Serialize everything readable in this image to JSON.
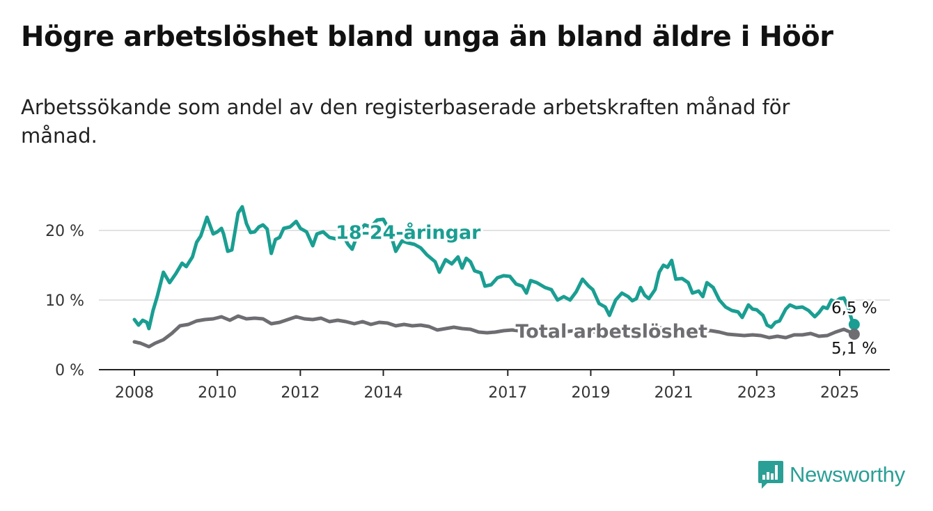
{
  "title": "Högre arbetslöshet bland unga än bland äldre i Höör",
  "subtitle": "Arbetssökande som andel av den registerbaserade arbetskraften månad för månad.",
  "brand": {
    "name": "Newsworthy",
    "icon": "chart-bars-icon",
    "color": "#2a9f95"
  },
  "chart_data": {
    "type": "line",
    "ylim": [
      0,
      25
    ],
    "xlim": [
      2007.6,
      2026.2
    ],
    "y_ticks": [
      {
        "value": 0,
        "label": "0 %"
      },
      {
        "value": 10,
        "label": "10 %"
      },
      {
        "value": 20,
        "label": "20 %"
      }
    ],
    "x_ticks": [
      {
        "value": 2008,
        "label": "2008"
      },
      {
        "value": 2010,
        "label": "2010"
      },
      {
        "value": 2012,
        "label": "2012"
      },
      {
        "value": 2014,
        "label": "2014"
      },
      {
        "value": 2017,
        "label": "2017"
      },
      {
        "value": 2019,
        "label": "2019"
      },
      {
        "value": 2021,
        "label": "2021"
      },
      {
        "value": 2023,
        "label": "2023"
      },
      {
        "value": 2025,
        "label": "2025"
      }
    ],
    "grid": true,
    "series": [
      {
        "name": "18-24-åringar",
        "color": "#1a9e92",
        "end_label": "6,5 %",
        "end_value": 6.5,
        "points": [
          [
            2008.0,
            7.2
          ],
          [
            2008.1,
            6.4
          ],
          [
            2008.2,
            7.1
          ],
          [
            2008.3,
            6.8
          ],
          [
            2008.35,
            5.9
          ],
          [
            2008.45,
            8.5
          ],
          [
            2008.55,
            10.5
          ],
          [
            2008.7,
            14.0
          ],
          [
            2008.85,
            12.5
          ],
          [
            2009.0,
            13.8
          ],
          [
            2009.15,
            15.3
          ],
          [
            2009.25,
            14.8
          ],
          [
            2009.4,
            16.2
          ],
          [
            2009.5,
            18.3
          ],
          [
            2009.6,
            19.2
          ],
          [
            2009.75,
            21.9
          ],
          [
            2009.9,
            19.5
          ],
          [
            2010.0,
            19.8
          ],
          [
            2010.1,
            20.3
          ],
          [
            2010.15,
            19.5
          ],
          [
            2010.25,
            17.0
          ],
          [
            2010.35,
            17.2
          ],
          [
            2010.5,
            22.5
          ],
          [
            2010.6,
            23.4
          ],
          [
            2010.7,
            21.0
          ],
          [
            2010.8,
            19.7
          ],
          [
            2010.9,
            19.8
          ],
          [
            2011.0,
            20.5
          ],
          [
            2011.1,
            20.8
          ],
          [
            2011.2,
            20.2
          ],
          [
            2011.3,
            16.7
          ],
          [
            2011.4,
            18.7
          ],
          [
            2011.5,
            19.0
          ],
          [
            2011.6,
            20.3
          ],
          [
            2011.75,
            20.5
          ],
          [
            2011.9,
            21.3
          ],
          [
            2012.0,
            20.3
          ],
          [
            2012.15,
            19.8
          ],
          [
            2012.3,
            17.8
          ],
          [
            2012.4,
            19.5
          ],
          [
            2012.55,
            19.8
          ],
          [
            2012.7,
            19.0
          ],
          [
            2012.85,
            18.8
          ],
          [
            2013.0,
            19.6
          ],
          [
            2013.15,
            18.0
          ],
          [
            2013.25,
            17.3
          ],
          [
            2013.4,
            19.8
          ],
          [
            2013.55,
            20.8
          ],
          [
            2013.7,
            20.5
          ],
          [
            2013.85,
            21.5
          ],
          [
            2014.0,
            21.6
          ],
          [
            2014.15,
            20.0
          ],
          [
            2014.3,
            17.0
          ],
          [
            2014.45,
            18.5
          ],
          [
            2014.6,
            18.2
          ],
          [
            2014.75,
            18.0
          ],
          [
            2014.9,
            17.5
          ],
          [
            2015.05,
            16.5
          ],
          [
            2015.25,
            15.5
          ],
          [
            2015.35,
            14.0
          ],
          [
            2015.5,
            15.8
          ],
          [
            2015.65,
            15.2
          ],
          [
            2015.8,
            16.2
          ],
          [
            2015.9,
            14.6
          ],
          [
            2016.0,
            16.0
          ],
          [
            2016.1,
            15.5
          ],
          [
            2016.2,
            14.2
          ],
          [
            2016.35,
            13.9
          ],
          [
            2016.45,
            12.0
          ],
          [
            2016.6,
            12.2
          ],
          [
            2016.75,
            13.2
          ],
          [
            2016.9,
            13.5
          ],
          [
            2017.05,
            13.4
          ],
          [
            2017.2,
            12.3
          ],
          [
            2017.35,
            12.0
          ],
          [
            2017.45,
            11.0
          ],
          [
            2017.55,
            12.8
          ],
          [
            2017.7,
            12.5
          ],
          [
            2017.9,
            11.8
          ],
          [
            2018.05,
            11.5
          ],
          [
            2018.2,
            10.0
          ],
          [
            2018.35,
            10.5
          ],
          [
            2018.5,
            10.0
          ],
          [
            2018.65,
            11.2
          ],
          [
            2018.8,
            13.0
          ],
          [
            2018.95,
            12.0
          ],
          [
            2019.05,
            11.5
          ],
          [
            2019.2,
            9.5
          ],
          [
            2019.35,
            9.0
          ],
          [
            2019.45,
            7.8
          ],
          [
            2019.6,
            10.0
          ],
          [
            2019.75,
            11.0
          ],
          [
            2019.9,
            10.5
          ],
          [
            2020.0,
            9.9
          ],
          [
            2020.1,
            10.2
          ],
          [
            2020.2,
            11.8
          ],
          [
            2020.3,
            10.7
          ],
          [
            2020.4,
            10.2
          ],
          [
            2020.55,
            11.5
          ],
          [
            2020.65,
            14.0
          ],
          [
            2020.75,
            15.0
          ],
          [
            2020.85,
            14.7
          ],
          [
            2020.95,
            15.7
          ],
          [
            2021.05,
            13.0
          ],
          [
            2021.2,
            13.1
          ],
          [
            2021.35,
            12.5
          ],
          [
            2021.45,
            11.0
          ],
          [
            2021.6,
            11.3
          ],
          [
            2021.7,
            10.5
          ],
          [
            2021.8,
            12.5
          ],
          [
            2021.95,
            11.8
          ],
          [
            2022.1,
            10.0
          ],
          [
            2022.25,
            9.0
          ],
          [
            2022.4,
            8.5
          ],
          [
            2022.55,
            8.3
          ],
          [
            2022.65,
            7.5
          ],
          [
            2022.8,
            9.3
          ],
          [
            2022.9,
            8.7
          ],
          [
            2023.0,
            8.6
          ],
          [
            2023.15,
            7.8
          ],
          [
            2023.25,
            6.4
          ],
          [
            2023.35,
            6.1
          ],
          [
            2023.45,
            6.8
          ],
          [
            2023.55,
            7.0
          ],
          [
            2023.7,
            8.7
          ],
          [
            2023.8,
            9.3
          ],
          [
            2023.95,
            8.9
          ],
          [
            2024.1,
            9.0
          ],
          [
            2024.25,
            8.5
          ],
          [
            2024.4,
            7.6
          ],
          [
            2024.5,
            8.2
          ],
          [
            2024.6,
            9.0
          ],
          [
            2024.7,
            8.8
          ],
          [
            2024.8,
            10.0
          ],
          [
            2024.9,
            9.7
          ],
          [
            2025.0,
            10.2
          ],
          [
            2025.1,
            10.3
          ],
          [
            2025.2,
            9.0
          ],
          [
            2025.3,
            7.0
          ],
          [
            2025.35,
            6.5
          ]
        ]
      },
      {
        "name": "Total arbetslöshet",
        "color": "#6d6d72",
        "end_label": "5,1 %",
        "end_value": 5.1,
        "points": [
          [
            2008.0,
            4.0
          ],
          [
            2008.15,
            3.8
          ],
          [
            2008.35,
            3.3
          ],
          [
            2008.5,
            3.8
          ],
          [
            2008.7,
            4.3
          ],
          [
            2008.9,
            5.2
          ],
          [
            2009.1,
            6.3
          ],
          [
            2009.3,
            6.5
          ],
          [
            2009.5,
            7.0
          ],
          [
            2009.7,
            7.2
          ],
          [
            2009.9,
            7.3
          ],
          [
            2010.1,
            7.6
          ],
          [
            2010.3,
            7.1
          ],
          [
            2010.5,
            7.7
          ],
          [
            2010.7,
            7.3
          ],
          [
            2010.9,
            7.4
          ],
          [
            2011.1,
            7.3
          ],
          [
            2011.3,
            6.6
          ],
          [
            2011.5,
            6.8
          ],
          [
            2011.7,
            7.2
          ],
          [
            2011.9,
            7.6
          ],
          [
            2012.1,
            7.3
          ],
          [
            2012.3,
            7.2
          ],
          [
            2012.5,
            7.4
          ],
          [
            2012.7,
            6.9
          ],
          [
            2012.9,
            7.1
          ],
          [
            2013.1,
            6.9
          ],
          [
            2013.3,
            6.6
          ],
          [
            2013.5,
            6.9
          ],
          [
            2013.7,
            6.5
          ],
          [
            2013.9,
            6.8
          ],
          [
            2014.1,
            6.7
          ],
          [
            2014.3,
            6.3
          ],
          [
            2014.5,
            6.5
          ],
          [
            2014.7,
            6.3
          ],
          [
            2014.9,
            6.4
          ],
          [
            2015.1,
            6.2
          ],
          [
            2015.3,
            5.7
          ],
          [
            2015.5,
            5.9
          ],
          [
            2015.7,
            6.1
          ],
          [
            2015.9,
            5.9
          ],
          [
            2016.1,
            5.8
          ],
          [
            2016.3,
            5.4
          ],
          [
            2016.5,
            5.3
          ],
          [
            2016.7,
            5.4
          ],
          [
            2016.9,
            5.6
          ],
          [
            2017.1,
            5.7
          ],
          [
            2017.4,
            5.5
          ],
          [
            2017.7,
            5.6
          ],
          [
            2018.0,
            5.5
          ],
          [
            2018.3,
            5.4
          ],
          [
            2018.6,
            5.6
          ],
          [
            2018.9,
            5.6
          ],
          [
            2019.2,
            5.3
          ],
          [
            2019.5,
            5.4
          ],
          [
            2019.8,
            5.6
          ],
          [
            2020.1,
            5.5
          ],
          [
            2020.4,
            5.6
          ],
          [
            2020.7,
            6.0
          ],
          [
            2021.0,
            5.8
          ],
          [
            2021.3,
            5.6
          ],
          [
            2021.6,
            5.6
          ],
          [
            2021.9,
            5.6
          ],
          [
            2022.1,
            5.4
          ],
          [
            2022.3,
            5.1
          ],
          [
            2022.5,
            5.0
          ],
          [
            2022.7,
            4.9
          ],
          [
            2022.9,
            5.0
          ],
          [
            2023.1,
            4.9
          ],
          [
            2023.3,
            4.6
          ],
          [
            2023.5,
            4.8
          ],
          [
            2023.7,
            4.6
          ],
          [
            2023.9,
            5.0
          ],
          [
            2024.1,
            5.0
          ],
          [
            2024.3,
            5.2
          ],
          [
            2024.5,
            4.8
          ],
          [
            2024.7,
            4.9
          ],
          [
            2024.9,
            5.4
          ],
          [
            2025.1,
            5.8
          ],
          [
            2025.25,
            5.4
          ],
          [
            2025.35,
            5.1
          ]
        ]
      }
    ],
    "inline_labels": [
      {
        "series": 0,
        "text": "18-24-åringar",
        "x": 2014.6,
        "y": 19.8,
        "anchor": "middle"
      },
      {
        "series": 1,
        "text": "Total arbetslöshet",
        "x": 2019.5,
        "y": 5.6,
        "anchor": "middle"
      }
    ]
  }
}
